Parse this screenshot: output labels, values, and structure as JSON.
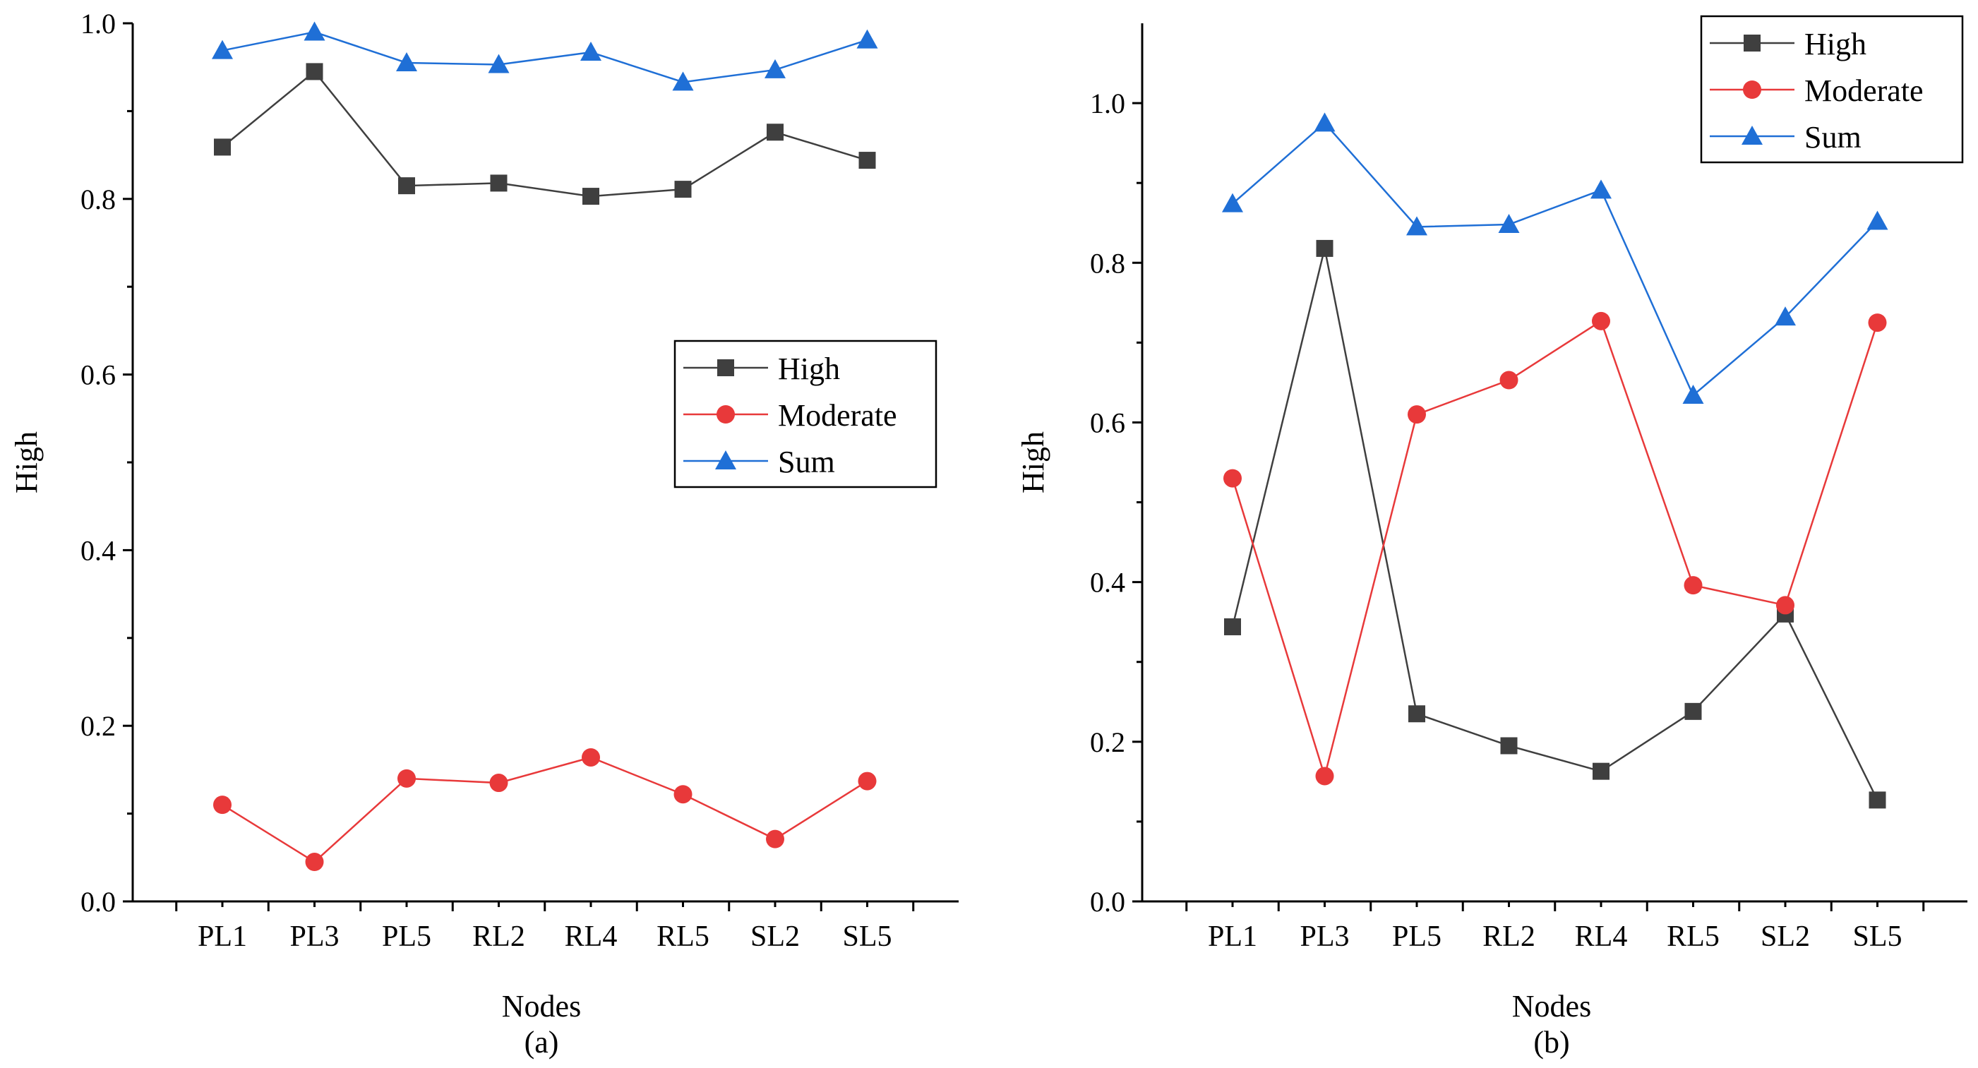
{
  "chart_data": [
    {
      "panel_label": "(a)",
      "type": "line",
      "xlabel": "Nodes",
      "ylabel": "High",
      "categories": [
        "PL1",
        "PL3",
        "PL5",
        "RL2",
        "RL4",
        "RL5",
        "SL2",
        "SL5"
      ],
      "ylim": [
        0,
        1.0
      ],
      "yticks": [
        "0.0",
        "0.2",
        "0.4",
        "0.6",
        "0.8",
        "1.0"
      ],
      "legend_position": "middle-right",
      "series": [
        {
          "name": "High",
          "marker": "square",
          "color": "#3f3f3f",
          "values": [
            0.859,
            0.945,
            0.815,
            0.818,
            0.803,
            0.811,
            0.876,
            0.844
          ]
        },
        {
          "name": "Moderate",
          "marker": "circle",
          "color": "#e8393a",
          "values": [
            0.11,
            0.045,
            0.14,
            0.135,
            0.164,
            0.122,
            0.071,
            0.137
          ]
        },
        {
          "name": "Sum",
          "marker": "triangle",
          "color": "#1f6fd6",
          "values": [
            0.969,
            0.99,
            0.955,
            0.953,
            0.967,
            0.933,
            0.947,
            0.981
          ]
        }
      ]
    },
    {
      "panel_label": "(b)",
      "type": "line",
      "xlabel": "Nodes",
      "ylabel": "High",
      "categories": [
        "PL1",
        "PL3",
        "PL5",
        "RL2",
        "RL4",
        "RL5",
        "SL2",
        "SL5"
      ],
      "ylim": [
        0,
        1.1
      ],
      "yticks": [
        "0.0",
        "0.2",
        "0.4",
        "0.6",
        "0.8",
        "1.0"
      ],
      "legend_position": "top-right",
      "series": [
        {
          "name": "High",
          "marker": "square",
          "color": "#3f3f3f",
          "values": [
            0.344,
            0.818,
            0.235,
            0.195,
            0.163,
            0.238,
            0.36,
            0.127
          ]
        },
        {
          "name": "Moderate",
          "marker": "circle",
          "color": "#e8393a",
          "values": [
            0.53,
            0.157,
            0.61,
            0.653,
            0.727,
            0.396,
            0.371,
            0.725
          ]
        },
        {
          "name": "Sum",
          "marker": "triangle",
          "color": "#1f6fd6",
          "values": [
            0.874,
            0.975,
            0.845,
            0.848,
            0.891,
            0.634,
            0.732,
            0.852
          ]
        }
      ]
    }
  ]
}
